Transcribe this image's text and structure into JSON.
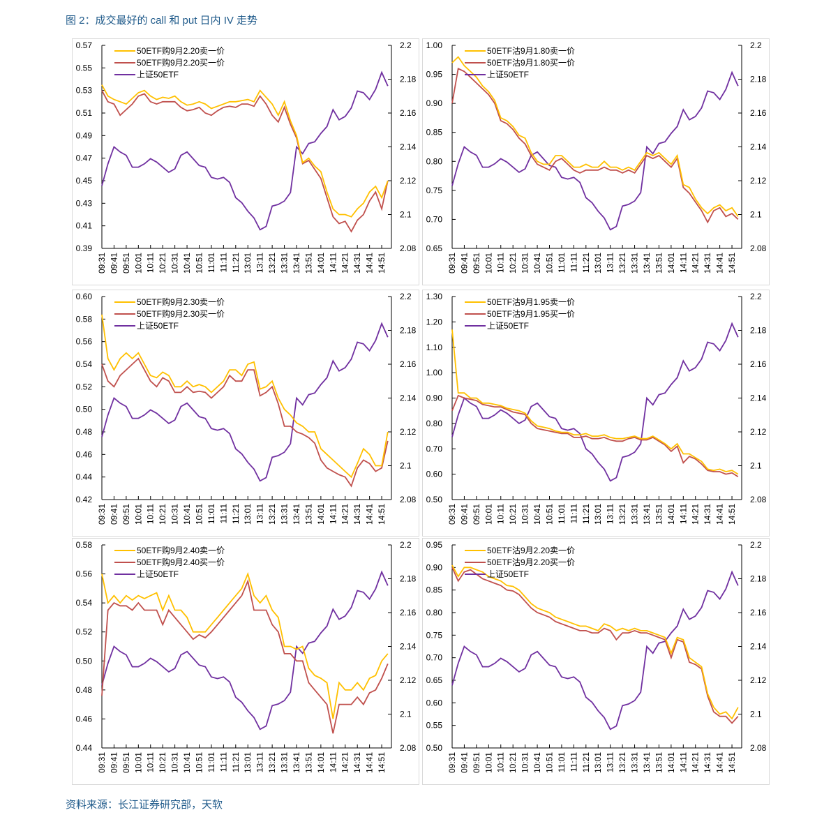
{
  "title": "图 2：成交最好的 call 和 put 日内 IV 走势",
  "source": "资料来源：长江证券研究部，天软",
  "colors": {
    "sell": "#FFC000",
    "buy": "#C0504D",
    "etf": "#7030A0"
  },
  "x_ticks": [
    "09:31",
    "09:41",
    "09:51",
    "10:01",
    "10:11",
    "10:21",
    "10:31",
    "10:41",
    "10:51",
    "11:01",
    "11:11",
    "11:21",
    "13:01",
    "13:11",
    "13:21",
    "13:31",
    "13:41",
    "13:51",
    "14:01",
    "14:11",
    "14:21",
    "14:31",
    "14:41",
    "14:51"
  ],
  "chart_data": [
    {
      "type": "line",
      "legend": [
        "50ETF购9月2.20卖一价",
        "50ETF购9月2.20买一价",
        "上证50ETF"
      ],
      "ylim": [
        0.39,
        0.57
      ],
      "yticks": [
        "0.39",
        "0.41",
        "0.43",
        "0.45",
        "0.47",
        "0.49",
        "0.51",
        "0.53",
        "0.55",
        "0.57"
      ],
      "y2lim": [
        2.08,
        2.2
      ],
      "y2ticks": [
        "2.08",
        "2.1",
        "2.12",
        "2.14",
        "2.16",
        "2.18",
        "2.2"
      ],
      "sell": [
        0.535,
        0.525,
        0.522,
        0.52,
        0.518,
        0.523,
        0.528,
        0.53,
        0.525,
        0.522,
        0.524,
        0.523,
        0.525,
        0.52,
        0.517,
        0.518,
        0.52,
        0.518,
        0.514,
        0.516,
        0.518,
        0.52,
        0.52,
        0.521,
        0.522,
        0.52,
        0.53,
        0.524,
        0.518,
        0.508,
        0.52,
        0.503,
        0.49,
        0.466,
        0.47,
        0.463,
        0.458,
        0.44,
        0.425,
        0.42,
        0.42,
        0.418,
        0.425,
        0.43,
        0.44,
        0.445,
        0.435,
        0.45
      ],
      "buy": [
        0.53,
        0.52,
        0.518,
        0.508,
        0.513,
        0.518,
        0.525,
        0.527,
        0.52,
        0.518,
        0.52,
        0.52,
        0.52,
        0.515,
        0.512,
        0.513,
        0.515,
        0.51,
        0.508,
        0.512,
        0.515,
        0.516,
        0.515,
        0.518,
        0.518,
        0.516,
        0.525,
        0.518,
        0.508,
        0.502,
        0.515,
        0.5,
        0.488,
        0.465,
        0.468,
        0.46,
        0.452,
        0.435,
        0.418,
        0.412,
        0.414,
        0.405,
        0.415,
        0.42,
        0.432,
        0.44,
        0.425,
        0.45
      ]
    },
    {
      "type": "line",
      "legend": [
        "50ETF沽9月1.80卖一价",
        "50ETF沽9月1.80买一价",
        "上证50ETF"
      ],
      "ylim": [
        0.65,
        1.0
      ],
      "yticks": [
        "0.65",
        "0.70",
        "0.75",
        "0.80",
        "0.85",
        "0.90",
        "0.95",
        "1.00"
      ],
      "y2lim": [
        2.08,
        2.2
      ],
      "y2ticks": [
        "2.08",
        "2.1",
        "2.12",
        "2.14",
        "2.16",
        "2.18",
        "2.2"
      ],
      "sell": [
        0.97,
        0.98,
        0.965,
        0.955,
        0.945,
        0.93,
        0.92,
        0.905,
        0.875,
        0.87,
        0.86,
        0.845,
        0.84,
        0.815,
        0.8,
        0.795,
        0.795,
        0.81,
        0.81,
        0.8,
        0.79,
        0.79,
        0.795,
        0.79,
        0.79,
        0.8,
        0.79,
        0.79,
        0.785,
        0.79,
        0.785,
        0.8,
        0.815,
        0.81,
        0.815,
        0.805,
        0.795,
        0.81,
        0.76,
        0.755,
        0.735,
        0.72,
        0.71,
        0.72,
        0.725,
        0.715,
        0.72,
        0.705
      ],
      "buy": [
        0.9,
        0.96,
        0.955,
        0.945,
        0.935,
        0.925,
        0.915,
        0.9,
        0.87,
        0.865,
        0.855,
        0.84,
        0.83,
        0.81,
        0.795,
        0.79,
        0.785,
        0.8,
        0.805,
        0.795,
        0.785,
        0.78,
        0.785,
        0.785,
        0.785,
        0.79,
        0.785,
        0.785,
        0.78,
        0.785,
        0.78,
        0.795,
        0.81,
        0.805,
        0.81,
        0.8,
        0.79,
        0.805,
        0.755,
        0.745,
        0.73,
        0.715,
        0.695,
        0.715,
        0.72,
        0.705,
        0.71,
        0.7
      ]
    },
    {
      "type": "line",
      "legend": [
        "50ETF购9月2.30卖一价",
        "50ETF购9月2.30买一价",
        "上证50ETF"
      ],
      "ylim": [
        0.42,
        0.6
      ],
      "yticks": [
        "0.42",
        "0.44",
        "0.46",
        "0.48",
        "0.50",
        "0.52",
        "0.54",
        "0.56",
        "0.58",
        "0.60"
      ],
      "y2lim": [
        2.08,
        2.2
      ],
      "y2ticks": [
        "2.08",
        "2.1",
        "2.12",
        "2.14",
        "2.16",
        "2.18",
        "2.2"
      ],
      "sell": [
        0.584,
        0.545,
        0.535,
        0.545,
        0.55,
        0.545,
        0.55,
        0.54,
        0.53,
        0.528,
        0.533,
        0.53,
        0.52,
        0.52,
        0.525,
        0.52,
        0.522,
        0.52,
        0.515,
        0.52,
        0.525,
        0.535,
        0.535,
        0.53,
        0.54,
        0.542,
        0.518,
        0.52,
        0.525,
        0.51,
        0.5,
        0.495,
        0.488,
        0.485,
        0.48,
        0.48,
        0.465,
        0.46,
        0.455,
        0.45,
        0.445,
        0.44,
        0.452,
        0.465,
        0.46,
        0.45,
        0.45,
        0.48
      ],
      "buy": [
        0.54,
        0.525,
        0.52,
        0.53,
        0.535,
        0.54,
        0.545,
        0.535,
        0.525,
        0.52,
        0.528,
        0.525,
        0.515,
        0.515,
        0.52,
        0.515,
        0.516,
        0.515,
        0.51,
        0.515,
        0.52,
        0.53,
        0.525,
        0.525,
        0.535,
        0.535,
        0.512,
        0.515,
        0.52,
        0.505,
        0.485,
        0.485,
        0.48,
        0.478,
        0.475,
        0.47,
        0.455,
        0.448,
        0.445,
        0.442,
        0.44,
        0.432,
        0.448,
        0.455,
        0.452,
        0.445,
        0.448,
        0.472
      ]
    },
    {
      "type": "line",
      "legend": [
        "50ETF沽9月1.95卖一价",
        "50ETF沽9月1.95买一价",
        "上证50ETF"
      ],
      "ylim": [
        0.5,
        1.3
      ],
      "yticks": [
        "0.50",
        "0.60",
        "0.70",
        "0.80",
        "0.90",
        "1.00",
        "1.10",
        "1.20",
        "1.30"
      ],
      "y2lim": [
        2.08,
        2.2
      ],
      "y2ticks": [
        "2.08",
        "2.1",
        "2.12",
        "2.14",
        "2.16",
        "2.18",
        "2.2"
      ],
      "sell": [
        1.17,
        0.92,
        0.92,
        0.9,
        0.9,
        0.88,
        0.88,
        0.875,
        0.87,
        0.86,
        0.855,
        0.85,
        0.84,
        0.81,
        0.79,
        0.785,
        0.78,
        0.77,
        0.765,
        0.765,
        0.755,
        0.755,
        0.76,
        0.75,
        0.75,
        0.755,
        0.745,
        0.74,
        0.74,
        0.745,
        0.75,
        0.74,
        0.74,
        0.75,
        0.735,
        0.72,
        0.7,
        0.72,
        0.68,
        0.68,
        0.665,
        0.65,
        0.62,
        0.615,
        0.62,
        0.61,
        0.615,
        0.6
      ],
      "buy": [
        0.85,
        0.91,
        0.9,
        0.895,
        0.89,
        0.875,
        0.87,
        0.865,
        0.865,
        0.855,
        0.845,
        0.84,
        0.835,
        0.8,
        0.78,
        0.775,
        0.77,
        0.765,
        0.76,
        0.76,
        0.745,
        0.745,
        0.75,
        0.74,
        0.74,
        0.745,
        0.735,
        0.73,
        0.73,
        0.74,
        0.745,
        0.735,
        0.735,
        0.745,
        0.73,
        0.715,
        0.69,
        0.71,
        0.645,
        0.67,
        0.66,
        0.64,
        0.615,
        0.61,
        0.61,
        0.6,
        0.605,
        0.59
      ]
    },
    {
      "type": "line",
      "legend": [
        "50ETF购9月2.40卖一价",
        "50ETF购9月2.40买一价",
        "上证50ETF"
      ],
      "ylim": [
        0.44,
        0.58
      ],
      "yticks": [
        "0.44",
        "0.46",
        "0.48",
        "0.50",
        "0.52",
        "0.54",
        "0.56",
        "0.58"
      ],
      "y2lim": [
        2.08,
        2.2
      ],
      "y2ticks": [
        "2.08",
        "2.1",
        "2.12",
        "2.14",
        "2.16",
        "2.18",
        "2.2"
      ],
      "sell": [
        0.56,
        0.54,
        0.545,
        0.54,
        0.545,
        0.542,
        0.545,
        0.543,
        0.545,
        0.547,
        0.535,
        0.545,
        0.535,
        0.535,
        0.53,
        0.52,
        0.52,
        0.52,
        0.525,
        0.53,
        0.535,
        0.54,
        0.545,
        0.55,
        0.56,
        0.545,
        0.54,
        0.545,
        0.535,
        0.53,
        0.51,
        0.51,
        0.508,
        0.51,
        0.495,
        0.49,
        0.488,
        0.485,
        0.46,
        0.485,
        0.48,
        0.48,
        0.485,
        0.48,
        0.488,
        0.49,
        0.5,
        0.505
      ],
      "buy": [
        0.476,
        0.535,
        0.54,
        0.538,
        0.538,
        0.535,
        0.54,
        0.535,
        0.535,
        0.535,
        0.525,
        0.535,
        0.53,
        0.525,
        0.52,
        0.515,
        0.518,
        0.516,
        0.52,
        0.525,
        0.53,
        0.535,
        0.54,
        0.545,
        0.555,
        0.535,
        0.535,
        0.535,
        0.525,
        0.52,
        0.505,
        0.505,
        0.5,
        0.5,
        0.485,
        0.48,
        0.475,
        0.47,
        0.45,
        0.47,
        0.47,
        0.47,
        0.475,
        0.47,
        0.478,
        0.48,
        0.488,
        0.498
      ]
    },
    {
      "type": "line",
      "legend": [
        "50ETF沽9月2.20卖一价",
        "50ETF沽9月2.20买一价",
        "上证50ETF"
      ],
      "ylim": [
        0.5,
        0.95
      ],
      "yticks": [
        "0.50",
        "0.55",
        "0.60",
        "0.65",
        "0.70",
        "0.75",
        "0.80",
        "0.85",
        "0.90",
        "0.95"
      ],
      "y2lim": [
        2.08,
        2.2
      ],
      "y2ticks": [
        "2.08",
        "2.1",
        "2.12",
        "2.14",
        "2.16",
        "2.18",
        "2.2"
      ],
      "sell": [
        0.905,
        0.88,
        0.9,
        0.9,
        0.895,
        0.89,
        0.88,
        0.875,
        0.87,
        0.86,
        0.858,
        0.85,
        0.835,
        0.82,
        0.81,
        0.805,
        0.8,
        0.79,
        0.785,
        0.78,
        0.775,
        0.77,
        0.77,
        0.765,
        0.76,
        0.775,
        0.77,
        0.76,
        0.765,
        0.76,
        0.765,
        0.76,
        0.76,
        0.755,
        0.75,
        0.745,
        0.71,
        0.745,
        0.74,
        0.7,
        0.69,
        0.68,
        0.62,
        0.59,
        0.575,
        0.58,
        0.565,
        0.59
      ],
      "buy": [
        0.9,
        0.87,
        0.89,
        0.895,
        0.885,
        0.875,
        0.87,
        0.865,
        0.86,
        0.85,
        0.848,
        0.84,
        0.825,
        0.81,
        0.8,
        0.795,
        0.79,
        0.78,
        0.775,
        0.77,
        0.765,
        0.76,
        0.76,
        0.755,
        0.755,
        0.765,
        0.76,
        0.74,
        0.755,
        0.755,
        0.76,
        0.755,
        0.755,
        0.75,
        0.745,
        0.74,
        0.7,
        0.74,
        0.735,
        0.69,
        0.685,
        0.675,
        0.615,
        0.58,
        0.57,
        0.57,
        0.555,
        0.57
      ]
    }
  ],
  "etf": [
    2.117,
    2.13,
    2.14,
    2.137,
    2.135,
    2.128,
    2.128,
    2.13,
    2.133,
    2.131,
    2.128,
    2.125,
    2.127,
    2.135,
    2.137,
    2.133,
    2.129,
    2.128,
    2.122,
    2.121,
    2.122,
    2.119,
    2.11,
    2.107,
    2.102,
    2.098,
    2.091,
    2.093,
    2.105,
    2.106,
    2.108,
    2.113,
    2.14,
    2.136,
    2.142,
    2.143,
    2.148,
    2.152,
    2.162,
    2.156,
    2.158,
    2.163,
    2.173,
    2.172,
    2.168,
    2.174,
    2.184,
    2.176
  ]
}
